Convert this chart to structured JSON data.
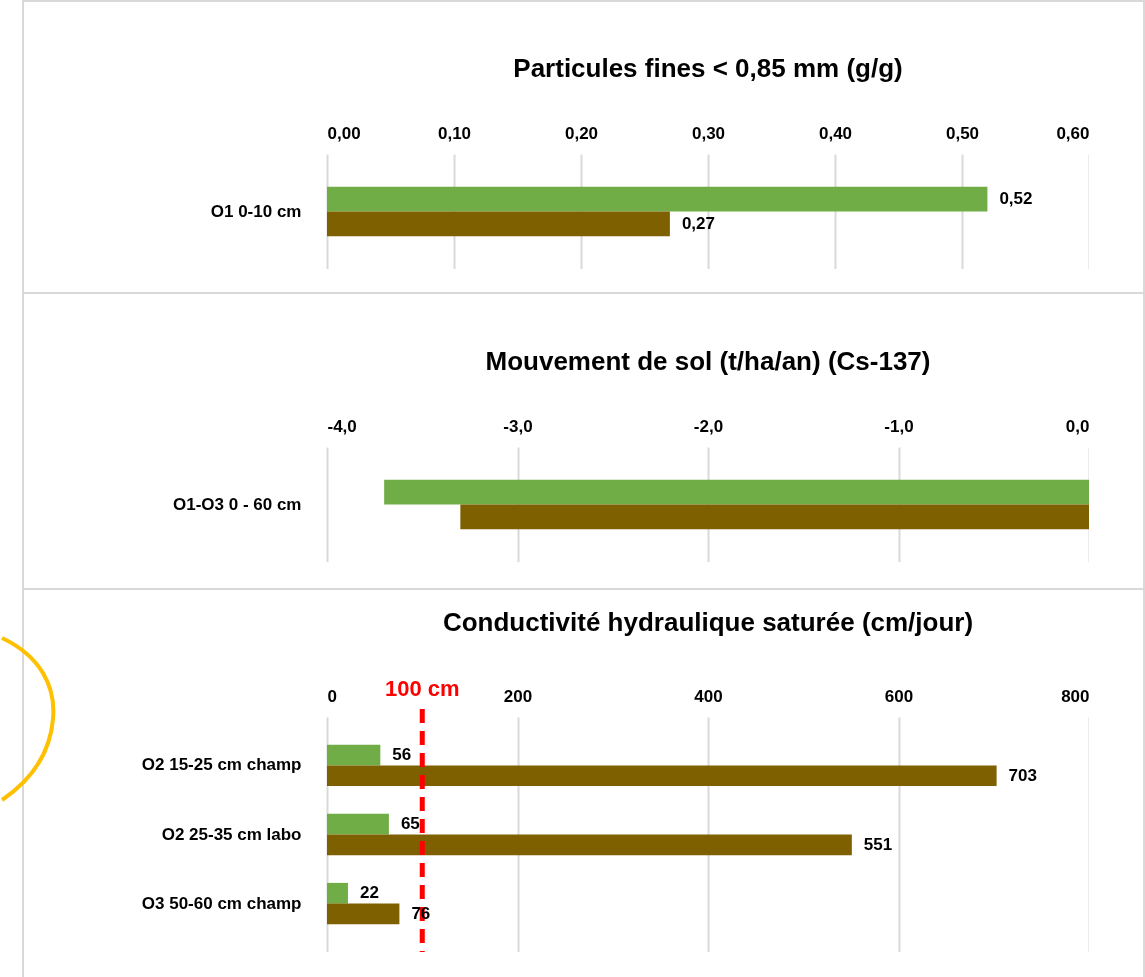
{
  "chart_data": [
    {
      "type": "bar",
      "orientation": "horizontal",
      "title": "Particules fines < 0,85 mm (g/g)",
      "categories": [
        "O1  0-10 cm"
      ],
      "series": [
        {
          "color": "#70ad47",
          "values": [
            0.52
          ],
          "value_labels": [
            "0,52"
          ]
        },
        {
          "color": "#7f6000",
          "values": [
            0.27
          ],
          "value_labels": [
            "0,27"
          ]
        }
      ],
      "xlim": [
        0,
        0.6
      ],
      "xticks": [
        {
          "value": 0,
          "label": "0,00"
        },
        {
          "value": 0.1,
          "label": "0,10"
        },
        {
          "value": 0.2,
          "label": "0,20"
        },
        {
          "value": 0.3,
          "label": "0,30"
        },
        {
          "value": 0.4,
          "label": "0,40"
        },
        {
          "value": 0.5,
          "label": "0,50"
        },
        {
          "value": 0.6,
          "label": "0,60"
        }
      ],
      "grid": "x"
    },
    {
      "type": "bar",
      "orientation": "horizontal",
      "title": "Mouvement de sol (t/ha/an) (Cs-137)",
      "categories": [
        "O1-O3 0 - 60 cm"
      ],
      "series": [
        {
          "color": "#70ad47",
          "values": [
            -3.7
          ]
        },
        {
          "color": "#7f6000",
          "values": [
            -3.3
          ]
        }
      ],
      "xlim": [
        -4,
        0
      ],
      "xticks": [
        {
          "value": -4,
          "label": "-4,0"
        },
        {
          "value": -3,
          "label": "-3,0"
        },
        {
          "value": -2,
          "label": "-2,0"
        },
        {
          "value": -1,
          "label": "-1,0"
        },
        {
          "value": 0,
          "label": "0,0"
        }
      ],
      "grid": "x"
    },
    {
      "type": "bar",
      "orientation": "horizontal",
      "title": "Conductivité hydraulique saturée (cm/jour)",
      "categories": [
        "O2 15-25 cm champ",
        "O2 25-35 cm labo",
        "O3 50-60 cm champ"
      ],
      "series": [
        {
          "color": "#70ad47",
          "values": [
            56,
            65,
            22
          ]
        },
        {
          "color": "#7f6000",
          "values": [
            703,
            551,
            76
          ]
        }
      ],
      "xlim": [
        0,
        800
      ],
      "xticks": [
        0,
        200,
        400,
        600,
        800
      ],
      "grid": "x",
      "data_labels": true,
      "ref_lines": [
        {
          "axis": "x",
          "value": 100,
          "label": "100 cm",
          "color": "#ff0000",
          "line_style": "dashed"
        }
      ]
    }
  ]
}
